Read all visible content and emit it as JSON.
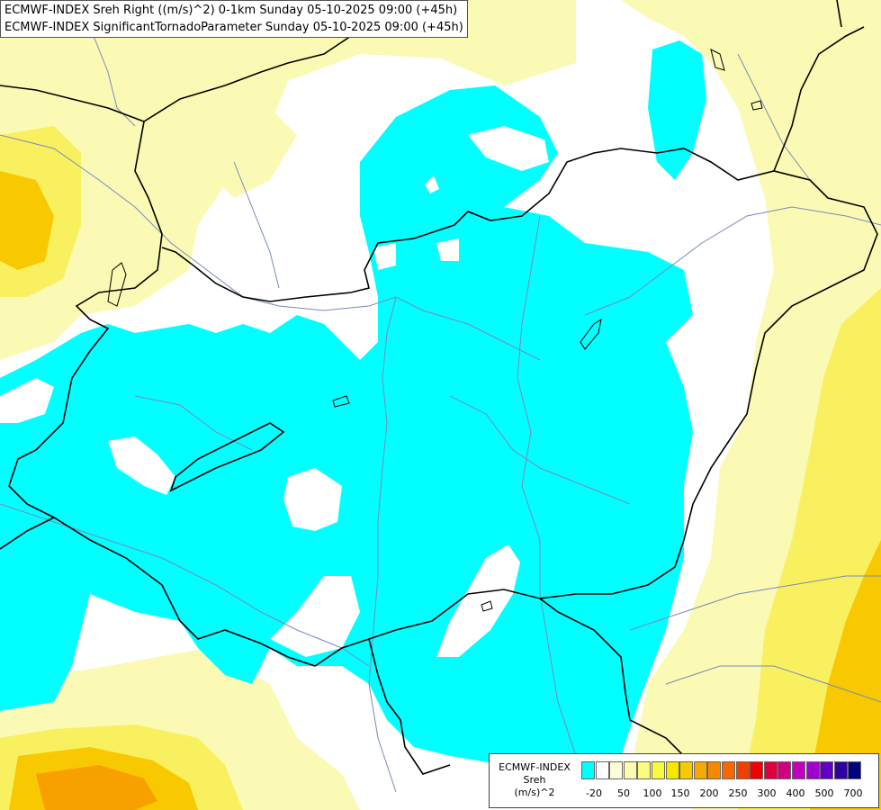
{
  "title": {
    "line1": "ECMWF-INDEX Sreh Right ((m/s)^2) 0-1km Sunday 05-10-2025 09:00 (+45h)",
    "line2": "ECMWF-INDEX SignificantTornadoParameter Sunday 05-10-2025 09:00 (+45h)"
  },
  "legend": {
    "source": "ECMWF-INDEX",
    "variable": "Sreh",
    "unit": "(m/s)^2",
    "ticks": [
      "-20",
      "50",
      "100",
      "150",
      "200",
      "250",
      "300",
      "400",
      "500",
      "700"
    ],
    "colors": [
      "#00ffff",
      "#ffffff",
      "#fdfdd8",
      "#fcfcb0",
      "#fbfb80",
      "#f9f940",
      "#f8e800",
      "#f8c800",
      "#f8a800",
      "#f88800",
      "#f86800",
      "#f04000",
      "#f00000",
      "#e00040",
      "#d00080",
      "#c000c0",
      "#a000d0",
      "#6000c0",
      "#3000a0",
      "#000080"
    ]
  },
  "colors": {
    "low_shear": "#00ffff",
    "neutral": "#ffffff",
    "light": "#fafab4",
    "medium": "#f9f060",
    "high": "#f8c800",
    "very_high": "#f8a000",
    "border": "#000000",
    "river": "#7a8ab8"
  }
}
